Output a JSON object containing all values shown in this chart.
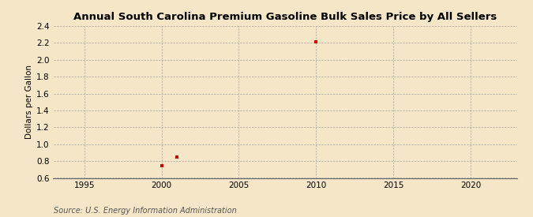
{
  "title": "Annual South Carolina Premium Gasoline Bulk Sales Price by All Sellers",
  "ylabel": "Dollars per Gallon",
  "source": "Source: U.S. Energy Information Administration",
  "data_x": [
    2000,
    2001,
    2010
  ],
  "data_y": [
    0.749,
    0.849,
    2.209
  ],
  "marker_color": "#cc0000",
  "marker_size": 3.5,
  "xlim": [
    1993,
    2023
  ],
  "ylim": [
    0.6,
    2.4
  ],
  "xticks": [
    1995,
    2000,
    2005,
    2010,
    2015,
    2020
  ],
  "yticks": [
    0.6,
    0.8,
    1.0,
    1.2,
    1.4,
    1.6,
    1.8,
    2.0,
    2.2,
    2.4
  ],
  "bg_color": "#f5e6c8",
  "plot_bg_color": "#f5e6c8",
  "grid_color": "#999999",
  "title_fontsize": 9.5,
  "label_fontsize": 7.5,
  "tick_fontsize": 7.5,
  "source_fontsize": 7
}
